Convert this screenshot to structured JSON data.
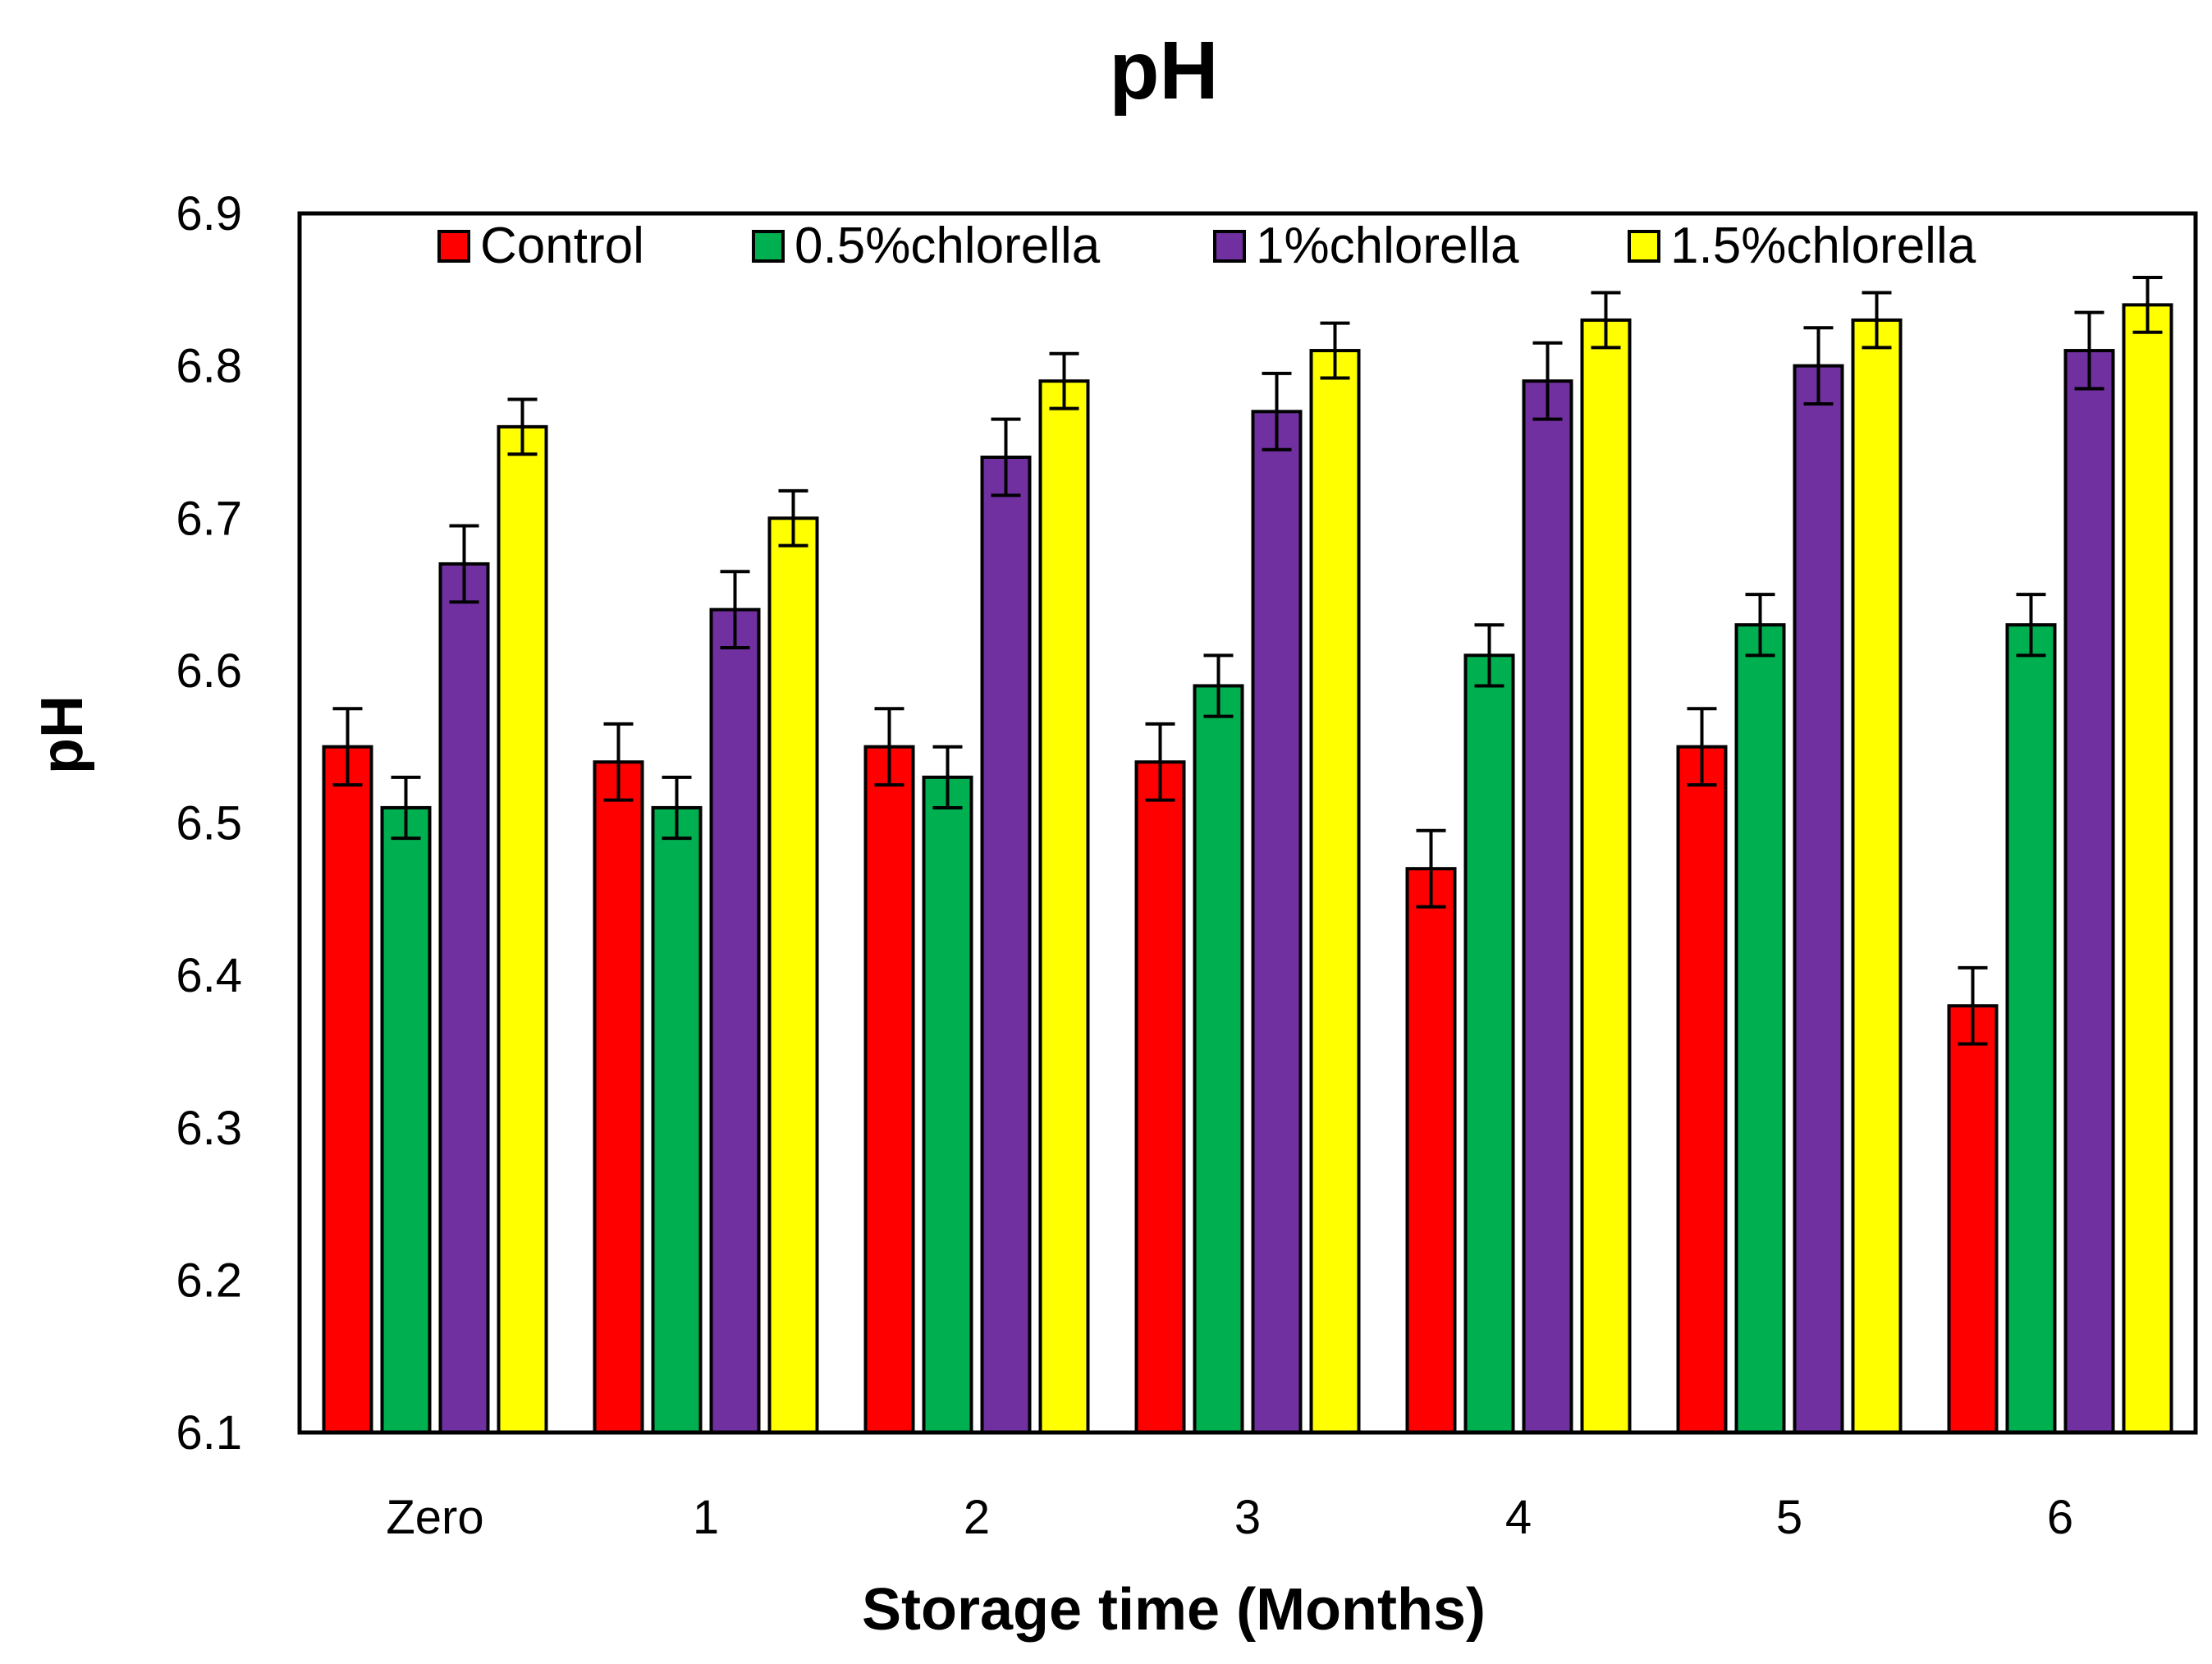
{
  "chart_data": {
    "type": "bar",
    "title": "pH",
    "xlabel": "Storage time (Months)",
    "ylabel": "pH",
    "ylim": [
      6.1,
      6.9
    ],
    "yticks": [
      "6.1",
      "6.2",
      "6.3",
      "6.4",
      "6.5",
      "6.6",
      "6.7",
      "6.8",
      "6.9"
    ],
    "grid": false,
    "legend_position": "top",
    "categories": [
      "Zero",
      "1",
      "2",
      "3",
      "4",
      "5",
      "6"
    ],
    "series": [
      {
        "name": "Control",
        "color": "#ff0000",
        "values": [
          6.55,
          6.54,
          6.55,
          6.54,
          6.47,
          6.55,
          6.38
        ],
        "errors": [
          0.025,
          0.025,
          0.025,
          0.025,
          0.025,
          0.025,
          0.025
        ]
      },
      {
        "name": "0.5%chlorella",
        "color": "#00b050",
        "values": [
          6.51,
          6.51,
          6.53,
          6.59,
          6.61,
          6.63,
          6.63
        ],
        "errors": [
          0.02,
          0.02,
          0.02,
          0.02,
          0.02,
          0.02,
          0.02
        ]
      },
      {
        "name": "1%chlorella",
        "color": "#7030a0",
        "values": [
          6.67,
          6.64,
          6.74,
          6.77,
          6.79,
          6.8,
          6.81
        ],
        "errors": [
          0.025,
          0.025,
          0.025,
          0.025,
          0.025,
          0.025,
          0.025
        ]
      },
      {
        "name": "1.5%chlorella",
        "color": "#ffff00",
        "values": [
          6.76,
          6.7,
          6.79,
          6.81,
          6.83,
          6.83,
          6.84
        ],
        "errors": [
          0.018,
          0.018,
          0.018,
          0.018,
          0.018,
          0.018,
          0.018
        ]
      }
    ]
  }
}
